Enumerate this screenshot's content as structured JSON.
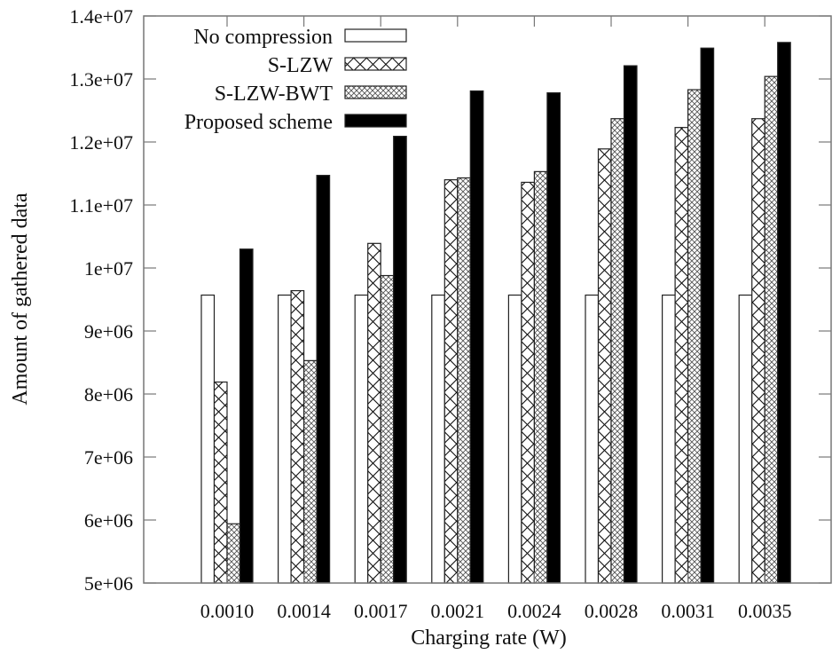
{
  "chart_data": {
    "type": "bar",
    "title": "",
    "xlabel": "Charging rate (W)",
    "ylabel": "Amount of gathered data",
    "ylim": [
      5000000,
      14000000
    ],
    "yticks": [
      5000000,
      6000000,
      7000000,
      8000000,
      9000000,
      10000000,
      11000000,
      12000000,
      13000000,
      14000000
    ],
    "ytick_labels": [
      "5e+06",
      "6e+06",
      "7e+06",
      "8e+06",
      "9e+06",
      "1e+07",
      "1.1e+07",
      "1.2e+07",
      "1.3e+07",
      "1.4e+07"
    ],
    "categories": [
      "0.0010",
      "0.0014",
      "0.0017",
      "0.0021",
      "0.0024",
      "0.0028",
      "0.0031",
      "0.0035"
    ],
    "legend_position": "top-left",
    "grid": false,
    "series": [
      {
        "name": "No compression",
        "pattern": "empty",
        "values": [
          9570000,
          9570000,
          9570000,
          9570000,
          9570000,
          9570000,
          9570000,
          9570000
        ]
      },
      {
        "name": "S-LZW",
        "pattern": "crosshatch",
        "values": [
          8190000,
          9640000,
          10390000,
          11400000,
          11360000,
          11890000,
          12230000,
          12370000
        ]
      },
      {
        "name": "S-LZW-BWT",
        "pattern": "fine-crosshatch",
        "values": [
          5940000,
          8530000,
          9880000,
          11430000,
          11530000,
          12370000,
          12830000,
          13040000
        ]
      },
      {
        "name": "Proposed scheme",
        "pattern": "solid",
        "values": [
          10300000,
          11470000,
          12090000,
          12810000,
          12780000,
          13210000,
          13490000,
          13580000
        ]
      }
    ]
  }
}
